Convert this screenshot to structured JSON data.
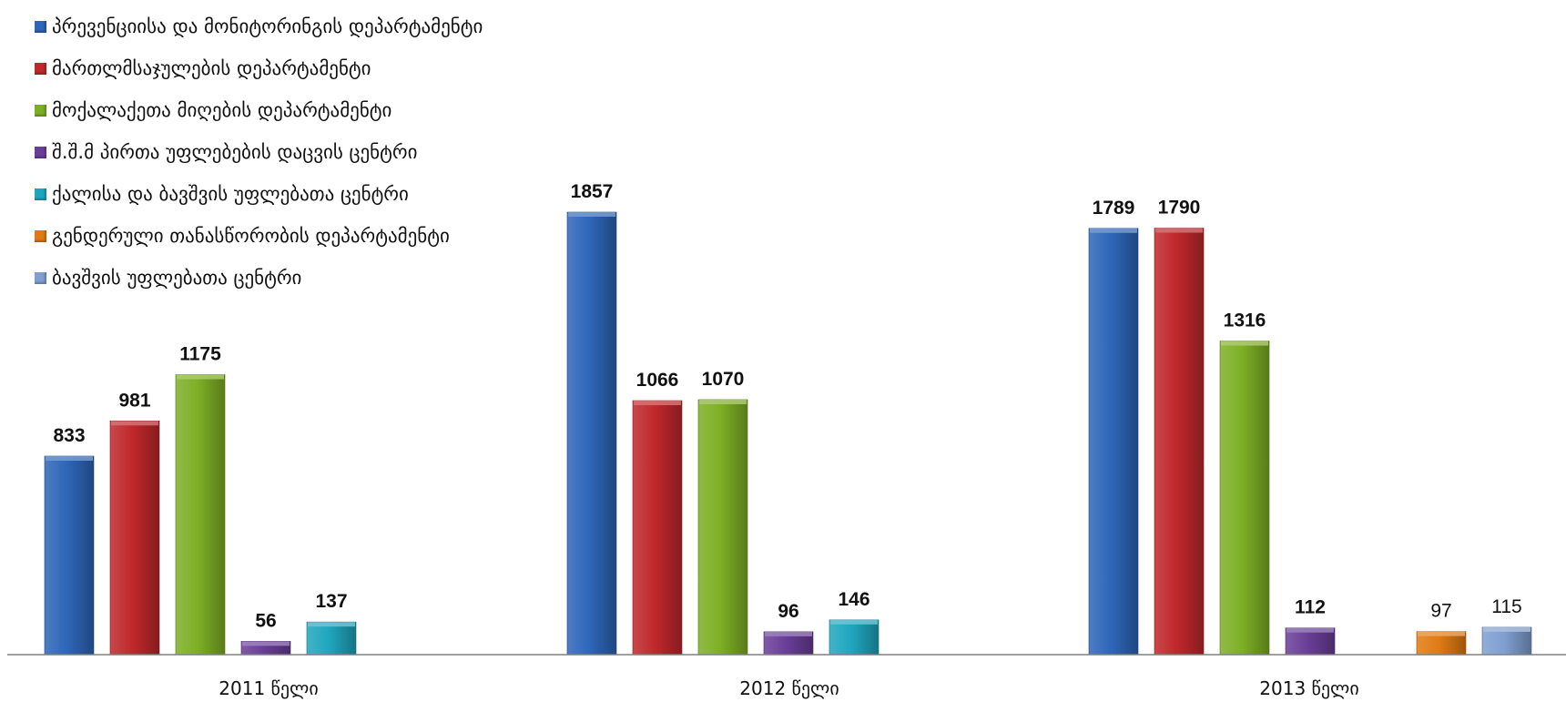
{
  "chart_data": {
    "type": "bar",
    "categories": [
      "2011 წელი",
      "2012 წელი",
      "2013 წელი"
    ],
    "ylim": [
      0,
      1857
    ],
    "grid": false,
    "legend_position": "top-left",
    "series": [
      {
        "name": "პრევენციისა და მონიტორინგის დეპარტამენტი",
        "color": "#2E66B8",
        "values": [
          833,
          1857,
          1789
        ]
      },
      {
        "name": "მართლმსაჯულების დეპარტამენტი",
        "color": "#C0282B",
        "values": [
          981,
          1066,
          1790
        ]
      },
      {
        "name": "მოქალაქეთა მიღების დეპარტამენტი",
        "color": "#7DAF25",
        "values": [
          1175,
          1070,
          1316
        ]
      },
      {
        "name": "შ.შ.მ პირთა უფლებების დაცვის ცენტრი",
        "color": "#6A3E98",
        "values": [
          56,
          96,
          112
        ]
      },
      {
        "name": "ქალისა და ბავშვის უფლებათა ცენტრი",
        "color": "#1FA6BE",
        "values": [
          137,
          146,
          null
        ]
      },
      {
        "name": "გენდერული თანასწორობის დეპარტამენტი",
        "color": "#E07B14",
        "values": [
          null,
          null,
          97
        ]
      },
      {
        "name": "ბავშვის უფლებათა ცენტრი",
        "color": "#7F9FD1",
        "values": [
          null,
          null,
          115
        ]
      }
    ],
    "value_labels": [
      [
        "833",
        "1857",
        "1789"
      ],
      [
        "981",
        "1066",
        "1790"
      ],
      [
        "1175",
        "1070",
        "1316"
      ],
      [
        "56",
        "96",
        "112"
      ],
      [
        "137",
        "146",
        ""
      ],
      [
        "",
        "",
        "97"
      ],
      [
        "",
        "",
        "115"
      ]
    ],
    "label_weight": [
      "bold",
      "bold",
      "bold",
      "bold",
      "bold",
      "normal",
      "normal"
    ]
  }
}
